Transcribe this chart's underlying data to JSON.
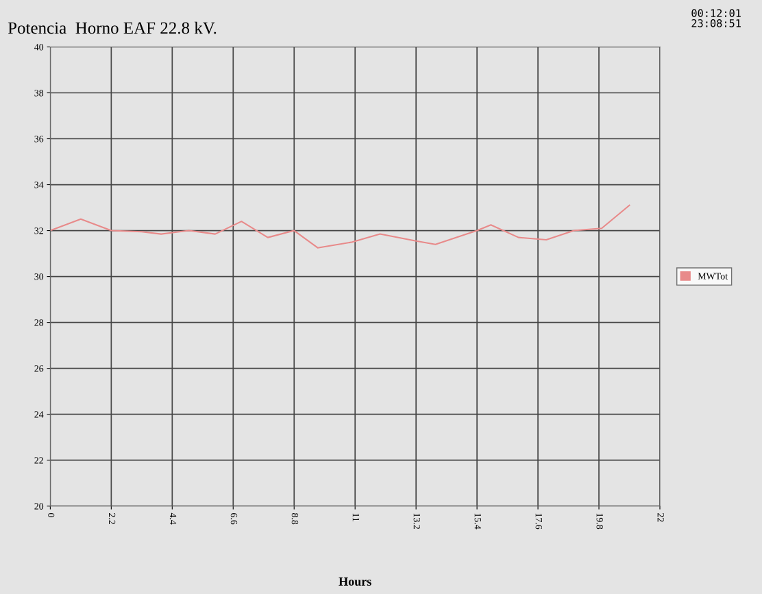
{
  "chart_data": {
    "type": "line",
    "title": "Potencia  Horno EAF 22.8 kV.",
    "xlabel": "Hours",
    "annotations": [
      "00:12:01",
      "23:08:51"
    ],
    "series": [
      {
        "name": "MWTot",
        "color": "#e88a8a",
        "x": [
          0,
          1.1,
          2.2,
          3.3,
          4.0,
          5.0,
          5.95,
          6.9,
          7.85,
          8.8,
          9.65,
          10.9,
          11.9,
          13.2,
          13.9,
          15.4,
          15.9,
          16.9,
          17.9,
          18.9,
          19.9,
          20.9
        ],
        "values": [
          32.0,
          32.5,
          32.0,
          31.95,
          31.85,
          32.0,
          31.85,
          32.4,
          31.7,
          32.0,
          31.25,
          31.5,
          31.85,
          31.55,
          31.4,
          32.0,
          32.25,
          31.7,
          31.6,
          32.0,
          32.1,
          33.1
        ]
      }
    ],
    "xlim": [
      0,
      22
    ],
    "xticks": [
      0,
      2.2,
      4.4,
      6.6,
      8.8,
      11,
      13.2,
      15.4,
      17.6,
      19.8,
      22
    ],
    "ylim": [
      20,
      40
    ],
    "yticks": [
      20,
      22,
      24,
      26,
      28,
      30,
      32,
      34,
      36,
      38,
      40
    ],
    "grid": true,
    "legend": "right"
  }
}
